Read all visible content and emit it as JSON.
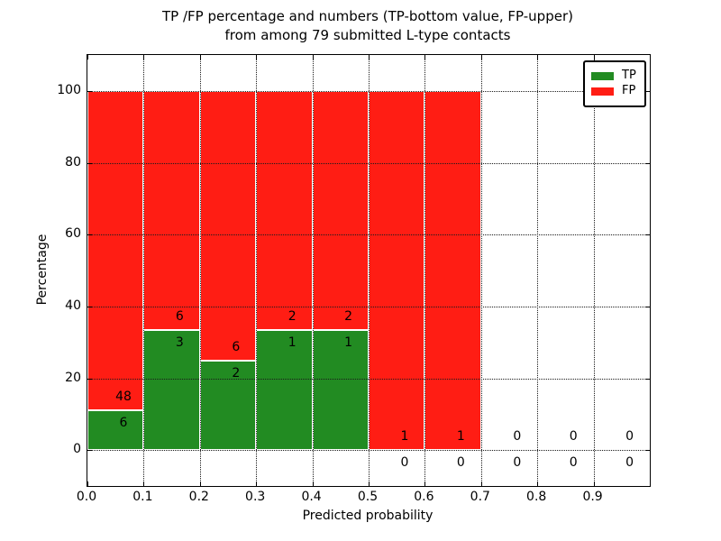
{
  "chart_data": {
    "type": "bar",
    "stacked": true,
    "title_lines": [
      "TP /FP percentage and numbers (TP-bottom value, FP-upper)",
      "from among 79 submitted L-type contacts"
    ],
    "xlabel": "Predicted probability",
    "ylabel": "Percentage",
    "xlim": [
      0.0,
      1.0
    ],
    "ylim": [
      -10,
      110
    ],
    "bin_width": 0.1,
    "grid": true,
    "x_tick_labels": [
      "0.0",
      "0.1",
      "0.2",
      "0.3",
      "0.4",
      "0.5",
      "0.6",
      "0.7",
      "0.8",
      "0.9"
    ],
    "y_tick_values": [
      0,
      20,
      40,
      60,
      80,
      100
    ],
    "total_contacts": 79,
    "legend": {
      "position": "upper-right",
      "entries": [
        {
          "label": "TP",
          "color": "#228b22"
        },
        {
          "label": "FP",
          "color": "#ff1d14"
        }
      ]
    },
    "bins": [
      {
        "x_start": 0.0,
        "tp": 6,
        "fp": 48,
        "tp_pct": 11.1,
        "fp_pct": 88.9
      },
      {
        "x_start": 0.1,
        "tp": 3,
        "fp": 6,
        "tp_pct": 33.3,
        "fp_pct": 66.7
      },
      {
        "x_start": 0.2,
        "tp": 2,
        "fp": 6,
        "tp_pct": 25.0,
        "fp_pct": 75.0
      },
      {
        "x_start": 0.3,
        "tp": 1,
        "fp": 2,
        "tp_pct": 33.3,
        "fp_pct": 66.7
      },
      {
        "x_start": 0.4,
        "tp": 1,
        "fp": 2,
        "tp_pct": 33.3,
        "fp_pct": 66.7
      },
      {
        "x_start": 0.5,
        "tp": 0,
        "fp": 1,
        "tp_pct": 0.0,
        "fp_pct": 100.0
      },
      {
        "x_start": 0.6,
        "tp": 0,
        "fp": 1,
        "tp_pct": 0.0,
        "fp_pct": 100.0
      },
      {
        "x_start": 0.7,
        "tp": 0,
        "fp": 0,
        "tp_pct": 0.0,
        "fp_pct": 0.0
      },
      {
        "x_start": 0.8,
        "tp": 0,
        "fp": 0,
        "tp_pct": 0.0,
        "fp_pct": 0.0
      },
      {
        "x_start": 0.9,
        "tp": 0,
        "fp": 0,
        "tp_pct": 0.0,
        "fp_pct": 0.0
      }
    ],
    "colors": {
      "tp": "#228b22",
      "fp": "#ff1d14",
      "grid": "#1b1b1b",
      "bar_edge": "#ffffff"
    }
  }
}
